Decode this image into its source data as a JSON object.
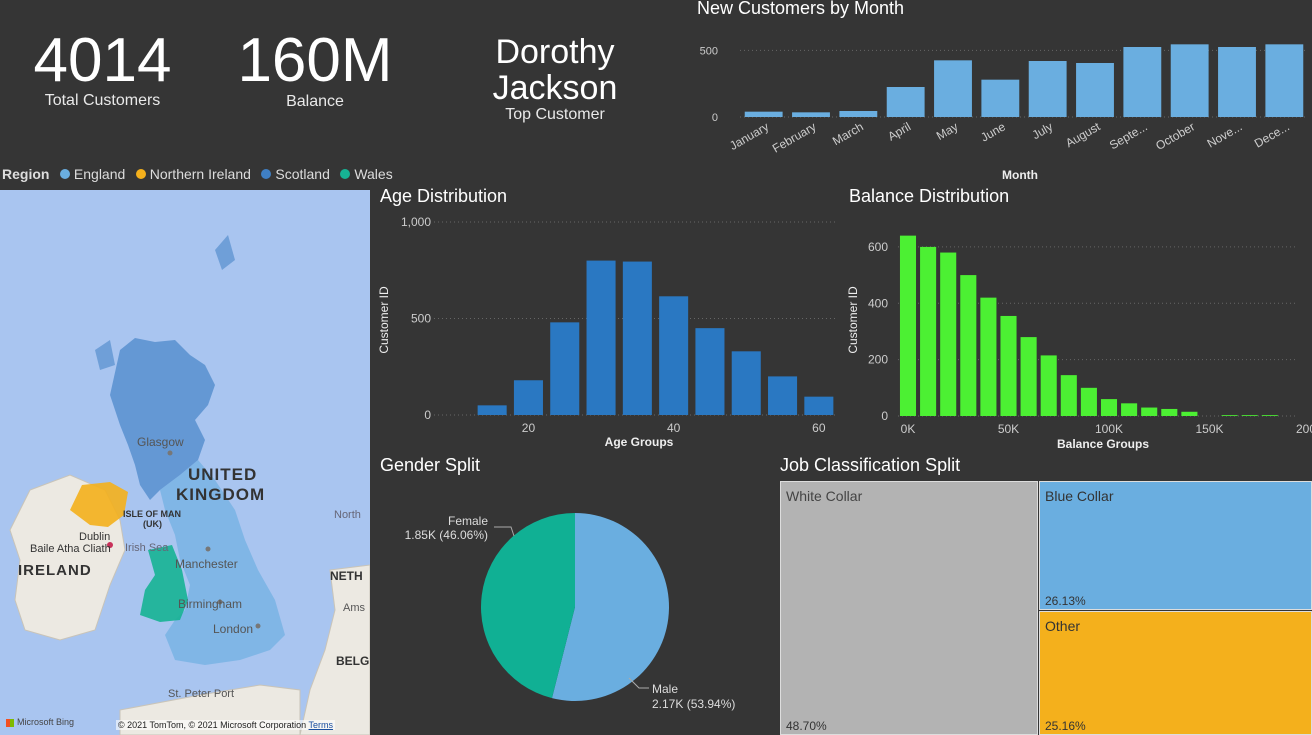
{
  "kpis": {
    "total_customers": {
      "value": "4014",
      "label": "Total Customers"
    },
    "balance": {
      "value": "160M",
      "label": "Balance"
    },
    "top_customer": {
      "line1": "Dorothy",
      "line2": "Jackson",
      "label": "Top Customer"
    }
  },
  "region_legend": {
    "title": "Region",
    "items": [
      {
        "name": "England",
        "color": "#6aaee0"
      },
      {
        "name": "Northern Ireland",
        "color": "#f4b01c"
      },
      {
        "name": "Scotland",
        "color": "#3f7fc4"
      },
      {
        "name": "Wales",
        "color": "#16b394"
      }
    ]
  },
  "map": {
    "labels": {
      "glasgow": "Glasgow",
      "united": "UNITED",
      "kingdom": "KINGDOM",
      "isle_of_man": "ISLE OF MAN",
      "uk": "(UK)",
      "dublin": "Dublin",
      "baile": "Baile Atha Cliath",
      "irish_sea": "Irish Sea",
      "ireland": "IRELAND",
      "manchester": "Manchester",
      "birmingham": "Birmingham",
      "london": "London",
      "north": "North",
      "neth": "NETH",
      "ams": "Ams",
      "belg": "BELG",
      "st_peter_port": "St. Peter Port"
    },
    "bing": "Microsoft Bing",
    "copyright": "© 2021 TomTom, © 2021 Microsoft Corporation",
    "terms": "Terms",
    "colors": {
      "water": "#a9c5f0",
      "land": "#ece9e2",
      "england": "#6aaee0",
      "ni": "#f4b01c",
      "scotland": "#3f7fc4",
      "wales": "#16b394"
    }
  },
  "charts": {
    "new_customers": {
      "title": "New Customers by Month"
    },
    "age": {
      "title": "Age Distribution"
    },
    "balance": {
      "title": "Balance Distribution"
    },
    "gender": {
      "title": "Gender Split"
    },
    "job": {
      "title": "Job Classification Split"
    }
  },
  "chart_data": [
    {
      "id": "new_customers",
      "type": "bar",
      "title": "New Customers by Month",
      "xlabel": "Month",
      "ylabel": "",
      "categories": [
        "January",
        "February",
        "March",
        "April",
        "May",
        "June",
        "July",
        "August",
        "Septe...",
        "October",
        "Nove...",
        "Dece..."
      ],
      "values": [
        40,
        35,
        45,
        225,
        425,
        280,
        420,
        405,
        525,
        545,
        525,
        545
      ],
      "ylim": [
        0,
        600
      ],
      "yticks": [
        "0",
        "500"
      ],
      "color": "#6aaee0"
    },
    {
      "id": "age",
      "type": "bar",
      "title": "Age Distribution",
      "xlabel": "Age Groups",
      "ylabel": "Customer ID",
      "x": [
        15,
        20,
        25,
        30,
        35,
        40,
        45,
        50,
        55,
        60
      ],
      "values": [
        50,
        180,
        480,
        800,
        795,
        615,
        450,
        330,
        200,
        95
      ],
      "xticks": [
        "20",
        "40",
        "60"
      ],
      "yticks": [
        "0",
        "500",
        "1,000"
      ],
      "ylim": [
        0,
        1000
      ],
      "color": "#2a78c2"
    },
    {
      "id": "balance",
      "type": "bar",
      "title": "Balance Distribution",
      "xlabel": "Balance Groups",
      "ylabel": "Customer ID",
      "x": [
        0,
        10,
        20,
        30,
        40,
        50,
        60,
        70,
        80,
        90,
        100,
        110,
        120,
        130,
        140,
        150,
        160,
        170,
        180
      ],
      "values": [
        640,
        600,
        580,
        500,
        420,
        355,
        280,
        215,
        145,
        100,
        60,
        45,
        30,
        25,
        15,
        0,
        3,
        3,
        3
      ],
      "xticks": [
        "0K",
        "50K",
        "100K",
        "150K",
        "200K"
      ],
      "yticks": [
        "0",
        "200",
        "400",
        "600"
      ],
      "ylim": [
        0,
        660
      ],
      "color": "#4cf033"
    },
    {
      "id": "gender",
      "type": "pie",
      "title": "Gender Split",
      "slices": [
        {
          "name": "Male",
          "value": 2.17,
          "display": "2.17K (53.94%)",
          "percent": 53.94,
          "color": "#6aaee0"
        },
        {
          "name": "Female",
          "value": 1.85,
          "display": "1.85K (46.06%)",
          "percent": 46.06,
          "color": "#10b094"
        }
      ]
    },
    {
      "id": "job",
      "type": "treemap",
      "title": "Job Classification Split",
      "items": [
        {
          "name": "White Collar",
          "percent": 48.7,
          "display": "48.70%",
          "color": "#b3b3b3"
        },
        {
          "name": "Blue Collar",
          "percent": 26.13,
          "display": "26.13%",
          "color": "#6aaee0"
        },
        {
          "name": "Other",
          "percent": 25.16,
          "display": "25.16%",
          "color": "#f4b01c"
        }
      ]
    }
  ]
}
